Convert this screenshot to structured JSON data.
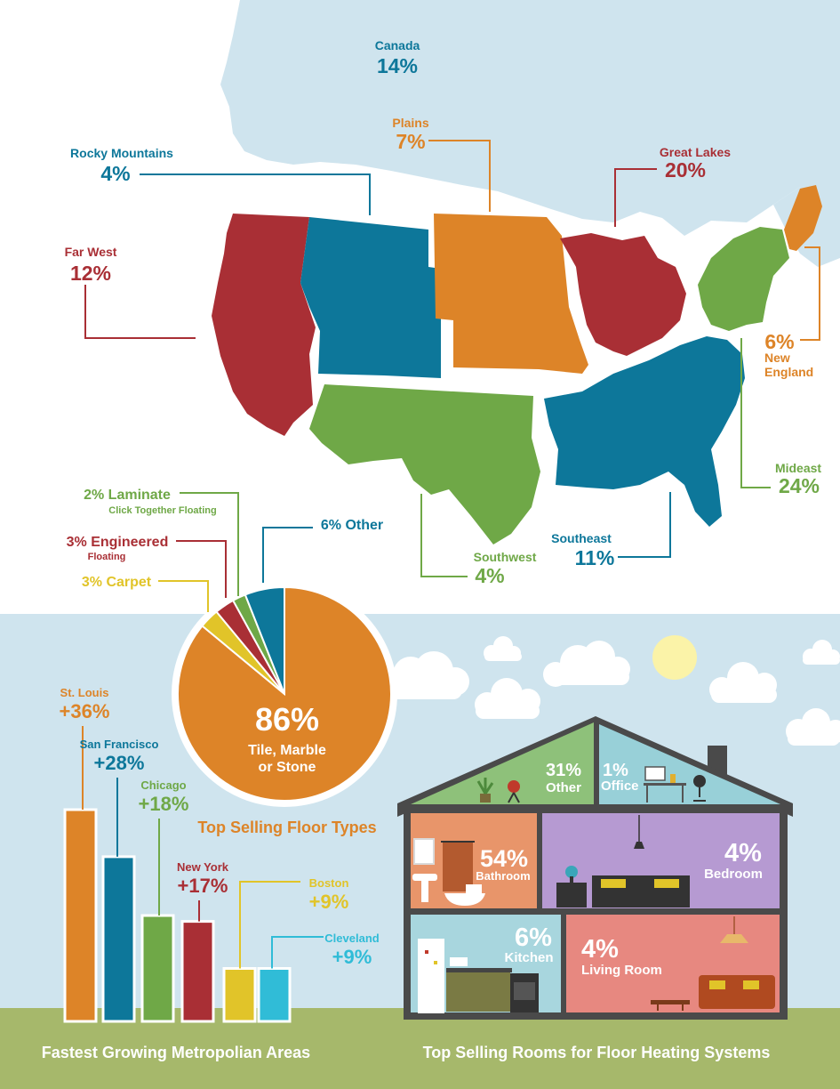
{
  "colors": {
    "orange": "#dd8428",
    "teal": "#0d779a",
    "red": "#a92f35",
    "green": "#6fa847",
    "yellow": "#e1c429",
    "cyan": "#30bcd7",
    "sky": "#cfe4ee",
    "grass": "#a6b86b"
  },
  "regions": {
    "canada": {
      "name": "Canada",
      "pct": "14%"
    },
    "plains": {
      "name": "Plains",
      "pct": "7%"
    },
    "great_lakes": {
      "name": "Great Lakes",
      "pct": "20%"
    },
    "rocky": {
      "name": "Rocky Mountains",
      "pct": "4%"
    },
    "far_west": {
      "name": "Far West",
      "pct": "12%"
    },
    "new_england": {
      "name": "New England",
      "name_line1": "New",
      "name_line2": "England",
      "pct": "6%"
    },
    "mideast": {
      "name": "Mideast",
      "pct": "24%"
    },
    "southwest": {
      "name": "Southwest",
      "pct": "4%"
    },
    "southeast": {
      "name": "Southeast",
      "pct": "11%"
    }
  },
  "floor_types": {
    "title": "Top Selling Floor Types",
    "main": {
      "pct": "86%",
      "line1": "Tile, Marble",
      "line2": "or Stone"
    },
    "laminate": {
      "label": "2% Laminate",
      "sub": "Click Together Floating"
    },
    "engineered": {
      "label": "3% Engineered",
      "sub": "Floating"
    },
    "carpet": {
      "label": "3% Carpet"
    },
    "other": {
      "label": "6% Other"
    }
  },
  "metro": {
    "title": "Fastest Growing Metropolian Areas",
    "items": [
      {
        "city": "St. Louis",
        "value": "+36%"
      },
      {
        "city": "San Francisco",
        "value": "+28%"
      },
      {
        "city": "Chicago",
        "value": "+18%"
      },
      {
        "city": "New York",
        "value": "+17%"
      },
      {
        "city": "Boston",
        "value": "+9%"
      },
      {
        "city": "Cleveland",
        "value": "+9%"
      }
    ]
  },
  "rooms": {
    "title": "Top Selling Rooms for Floor Heating Systems",
    "other": {
      "pct": "31%",
      "label": "Other"
    },
    "office": {
      "pct": "1%",
      "label": "Office"
    },
    "bathroom": {
      "pct": "54%",
      "label": "Bathroom"
    },
    "bedroom": {
      "pct": "4%",
      "label": "Bedroom"
    },
    "kitchen": {
      "pct": "6%",
      "label": "Kitchen"
    },
    "living": {
      "pct": "4%",
      "label": "Living Room"
    }
  },
  "chart_data": [
    {
      "type": "pie",
      "title": "Top Selling Floor Types",
      "categories": [
        "Tile, Marble or Stone",
        "Carpet",
        "Engineered",
        "Laminate",
        "Other"
      ],
      "values": [
        86,
        3,
        3,
        2,
        6
      ],
      "colors": [
        "#dd8428",
        "#e1c429",
        "#a92f35",
        "#6fa847",
        "#0d779a"
      ]
    },
    {
      "type": "bar",
      "title": "Fastest Growing Metropolian Areas",
      "categories": [
        "St. Louis",
        "San Francisco",
        "Chicago",
        "New York",
        "Boston",
        "Cleveland"
      ],
      "values": [
        36,
        28,
        18,
        17,
        9,
        9
      ],
      "colors": [
        "#dd8428",
        "#0d779a",
        "#6fa847",
        "#a92f35",
        "#e1c429",
        "#30bcd7"
      ]
    },
    {
      "type": "table",
      "title": "Top Selling Rooms for Floor Heating Systems",
      "categories": [
        "Bathroom",
        "Other",
        "Kitchen",
        "Bedroom",
        "Living Room",
        "Office"
      ],
      "values": [
        54,
        31,
        6,
        4,
        4,
        1
      ]
    }
  ]
}
